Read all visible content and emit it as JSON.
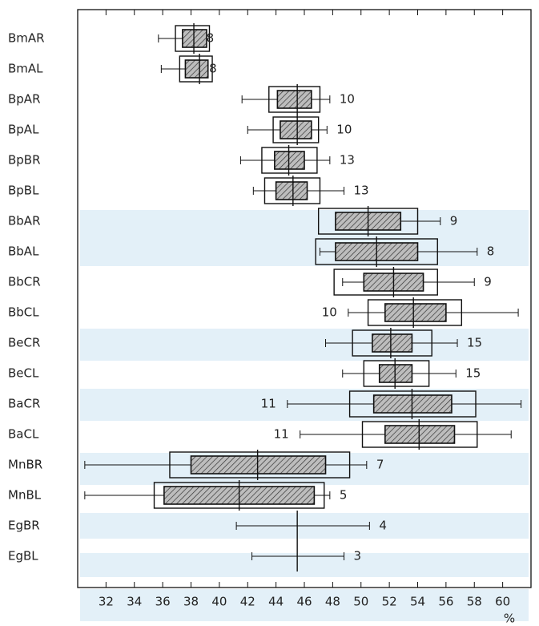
{
  "chart_data": {
    "type": "box",
    "categories": [
      "BmAR",
      "BmAL",
      "BpAR",
      "BpAL",
      "BpBR",
      "BpBL",
      "BbAR",
      "BbAL",
      "BbCR",
      "BbCL",
      "BeCR",
      "BeCL",
      "BaCR",
      "BaCL",
      "MnBR",
      "MnBL",
      "EgBR",
      "EgBL"
    ],
    "mean": [
      38.2,
      38.6,
      45.5,
      45.5,
      44.9,
      45.2,
      50.5,
      51.1,
      52.3,
      53.7,
      52.1,
      52.4,
      53.6,
      54.1,
      42.7,
      41.4,
      45.5,
      45.5
    ],
    "inner_low": [
      37.4,
      37.6,
      44.1,
      44.3,
      43.9,
      44.0,
      48.2,
      48.2,
      50.2,
      51.7,
      50.8,
      51.3,
      50.9,
      51.7,
      38.0,
      36.1,
      null,
      null
    ],
    "inner_high": [
      39.1,
      39.2,
      46.5,
      46.5,
      46.0,
      46.2,
      52.8,
      54.0,
      54.4,
      56.0,
      53.6,
      53.6,
      56.4,
      56.6,
      47.5,
      46.7,
      null,
      null
    ],
    "outer_low": [
      36.9,
      37.2,
      43.5,
      43.8,
      43.0,
      43.2,
      47.0,
      46.8,
      48.1,
      50.5,
      49.4,
      50.2,
      49.2,
      50.1,
      36.5,
      35.4,
      null,
      null
    ],
    "outer_high": [
      39.3,
      39.5,
      47.1,
      47.0,
      46.9,
      47.1,
      54.0,
      55.4,
      55.4,
      57.1,
      55.0,
      54.8,
      58.1,
      58.2,
      49.2,
      47.4,
      null,
      null
    ],
    "min": [
      35.7,
      35.9,
      41.6,
      42.0,
      41.5,
      42.4,
      48.2,
      47.1,
      48.7,
      49.1,
      47.5,
      48.7,
      44.8,
      45.7,
      30.5,
      30.5,
      41.2,
      42.3
    ],
    "max": [
      38.4,
      38.6,
      47.8,
      47.6,
      47.8,
      48.8,
      55.6,
      58.2,
      58.0,
      61.1,
      56.8,
      56.7,
      61.3,
      60.6,
      50.4,
      47.8,
      50.6,
      48.8
    ],
    "n": [
      8,
      8,
      10,
      10,
      13,
      13,
      9,
      8,
      9,
      10,
      15,
      15,
      11,
      11,
      7,
      5,
      4,
      3
    ],
    "xlabel": "%",
    "xlim": [
      30,
      62
    ],
    "xticks": [
      32,
      34,
      36,
      38,
      40,
      42,
      44,
      46,
      48,
      50,
      52,
      54,
      56,
      58,
      60
    ]
  }
}
